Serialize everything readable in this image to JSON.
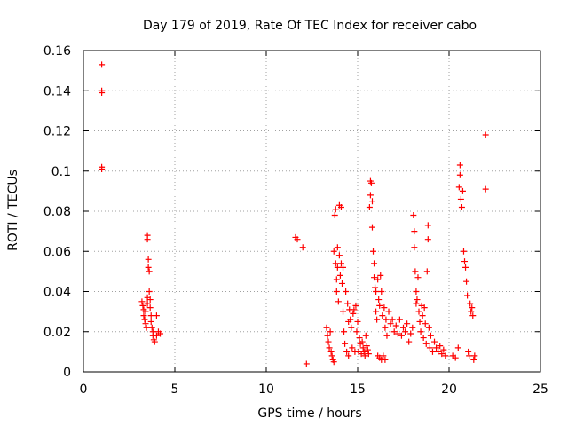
{
  "chart_data": {
    "type": "scatter",
    "title": "Day 179 of 2019, Rate Of TEC Index for receiver cabo",
    "xlabel": "GPS time / hours",
    "ylabel": "ROTI / TECUs",
    "xlim": [
      0,
      25
    ],
    "ylim": [
      0,
      0.16
    ],
    "xticks": [
      0,
      5,
      10,
      15,
      20,
      25
    ],
    "yticks": [
      0,
      0.02,
      0.04,
      0.06,
      0.08,
      0.1,
      0.12,
      0.14,
      0.16
    ],
    "xtick_labels": [
      "0",
      "5",
      "10",
      "15",
      "20",
      "25"
    ],
    "ytick_labels": [
      "0",
      "0.02",
      "0.04",
      "0.06",
      "0.08",
      "0.1",
      "0.12",
      "0.14",
      "0.16"
    ],
    "grid": true,
    "marker": "plus",
    "color": "#ff0000",
    "points": [
      [
        1.0,
        0.153
      ],
      [
        1.0,
        0.14
      ],
      [
        1.0,
        0.139
      ],
      [
        1.0,
        0.102
      ],
      [
        1.0,
        0.101
      ],
      [
        3.2,
        0.035
      ],
      [
        3.25,
        0.033
      ],
      [
        3.3,
        0.031
      ],
      [
        3.3,
        0.028
      ],
      [
        3.35,
        0.026
      ],
      [
        3.4,
        0.03
      ],
      [
        3.4,
        0.024
      ],
      [
        3.45,
        0.022
      ],
      [
        3.5,
        0.034
      ],
      [
        3.5,
        0.037
      ],
      [
        3.5,
        0.066
      ],
      [
        3.5,
        0.068
      ],
      [
        3.55,
        0.056
      ],
      [
        3.55,
        0.052
      ],
      [
        3.6,
        0.05
      ],
      [
        3.6,
        0.04
      ],
      [
        3.65,
        0.036
      ],
      [
        3.65,
        0.032
      ],
      [
        3.7,
        0.028
      ],
      [
        3.7,
        0.025
      ],
      [
        3.75,
        0.022
      ],
      [
        3.8,
        0.02
      ],
      [
        3.8,
        0.018
      ],
      [
        3.85,
        0.016
      ],
      [
        3.9,
        0.015
      ],
      [
        4.0,
        0.028
      ],
      [
        4.0,
        0.018
      ],
      [
        4.1,
        0.02
      ],
      [
        4.2,
        0.019
      ],
      [
        11.6,
        0.067
      ],
      [
        11.7,
        0.066
      ],
      [
        12.0,
        0.062
      ],
      [
        12.2,
        0.004
      ],
      [
        13.3,
        0.022
      ],
      [
        13.35,
        0.018
      ],
      [
        13.4,
        0.015
      ],
      [
        13.45,
        0.012
      ],
      [
        13.5,
        0.02
      ],
      [
        13.55,
        0.01
      ],
      [
        13.6,
        0.008
      ],
      [
        13.65,
        0.006
      ],
      [
        13.7,
        0.06
      ],
      [
        13.7,
        0.005
      ],
      [
        13.75,
        0.078
      ],
      [
        13.8,
        0.081
      ],
      [
        13.8,
        0.054
      ],
      [
        13.85,
        0.046
      ],
      [
        13.85,
        0.04
      ],
      [
        13.9,
        0.062
      ],
      [
        13.9,
        0.052
      ],
      [
        13.95,
        0.035
      ],
      [
        14.0,
        0.083
      ],
      [
        14.0,
        0.058
      ],
      [
        14.05,
        0.048
      ],
      [
        14.1,
        0.082
      ],
      [
        14.1,
        0.054
      ],
      [
        14.15,
        0.044
      ],
      [
        14.2,
        0.052
      ],
      [
        14.2,
        0.03
      ],
      [
        14.25,
        0.02
      ],
      [
        14.3,
        0.014
      ],
      [
        14.35,
        0.04
      ],
      [
        14.4,
        0.01
      ],
      [
        14.45,
        0.034
      ],
      [
        14.5,
        0.025
      ],
      [
        14.5,
        0.008
      ],
      [
        14.55,
        0.031
      ],
      [
        14.6,
        0.026
      ],
      [
        14.65,
        0.022
      ],
      [
        14.7,
        0.012
      ],
      [
        14.75,
        0.029
      ],
      [
        14.8,
        0.031
      ],
      [
        14.85,
        0.01
      ],
      [
        14.9,
        0.033
      ],
      [
        14.95,
        0.02
      ],
      [
        15.0,
        0.025
      ],
      [
        15.05,
        0.01
      ],
      [
        15.1,
        0.017
      ],
      [
        15.15,
        0.014
      ],
      [
        15.2,
        0.009
      ],
      [
        15.25,
        0.015
      ],
      [
        15.3,
        0.012
      ],
      [
        15.35,
        0.01
      ],
      [
        15.4,
        0.008
      ],
      [
        15.45,
        0.018
      ],
      [
        15.5,
        0.013
      ],
      [
        15.55,
        0.011
      ],
      [
        15.6,
        0.009
      ],
      [
        15.65,
        0.082
      ],
      [
        15.7,
        0.095
      ],
      [
        15.7,
        0.088
      ],
      [
        15.75,
        0.094
      ],
      [
        15.8,
        0.085
      ],
      [
        15.8,
        0.072
      ],
      [
        15.85,
        0.06
      ],
      [
        15.9,
        0.054
      ],
      [
        15.9,
        0.047
      ],
      [
        15.95,
        0.042
      ],
      [
        16.0,
        0.04
      ],
      [
        16.0,
        0.03
      ],
      [
        16.05,
        0.026
      ],
      [
        16.1,
        0.046
      ],
      [
        16.1,
        0.008
      ],
      [
        16.15,
        0.036
      ],
      [
        16.2,
        0.033
      ],
      [
        16.2,
        0.007
      ],
      [
        16.25,
        0.048
      ],
      [
        16.3,
        0.04
      ],
      [
        16.3,
        0.006
      ],
      [
        16.35,
        0.028
      ],
      [
        16.4,
        0.008
      ],
      [
        16.45,
        0.032
      ],
      [
        16.5,
        0.022
      ],
      [
        16.5,
        0.006
      ],
      [
        16.55,
        0.026
      ],
      [
        16.6,
        0.018
      ],
      [
        16.7,
        0.03
      ],
      [
        16.8,
        0.024
      ],
      [
        16.9,
        0.026
      ],
      [
        17.0,
        0.02
      ],
      [
        17.1,
        0.023
      ],
      [
        17.2,
        0.019
      ],
      [
        17.3,
        0.026
      ],
      [
        17.4,
        0.018
      ],
      [
        17.5,
        0.022
      ],
      [
        17.6,
        0.02
      ],
      [
        17.7,
        0.024
      ],
      [
        17.8,
        0.015
      ],
      [
        17.9,
        0.019
      ],
      [
        18.0,
        0.022
      ],
      [
        18.05,
        0.078
      ],
      [
        18.1,
        0.07
      ],
      [
        18.1,
        0.062
      ],
      [
        18.15,
        0.05
      ],
      [
        18.2,
        0.04
      ],
      [
        18.2,
        0.034
      ],
      [
        18.25,
        0.036
      ],
      [
        18.3,
        0.047
      ],
      [
        18.35,
        0.03
      ],
      [
        18.4,
        0.025
      ],
      [
        18.45,
        0.02
      ],
      [
        18.5,
        0.033
      ],
      [
        18.55,
        0.028
      ],
      [
        18.6,
        0.017
      ],
      [
        18.65,
        0.032
      ],
      [
        18.7,
        0.024
      ],
      [
        18.75,
        0.014
      ],
      [
        18.8,
        0.05
      ],
      [
        18.85,
        0.073
      ],
      [
        18.85,
        0.066
      ],
      [
        18.9,
        0.022
      ],
      [
        18.95,
        0.012
      ],
      [
        19.0,
        0.018
      ],
      [
        19.1,
        0.01
      ],
      [
        19.2,
        0.015
      ],
      [
        19.3,
        0.012
      ],
      [
        19.4,
        0.01
      ],
      [
        19.5,
        0.013
      ],
      [
        19.6,
        0.009
      ],
      [
        19.7,
        0.011
      ],
      [
        19.8,
        0.008
      ],
      [
        20.2,
        0.008
      ],
      [
        20.35,
        0.007
      ],
      [
        20.5,
        0.012
      ],
      [
        20.55,
        0.092
      ],
      [
        20.6,
        0.103
      ],
      [
        20.6,
        0.098
      ],
      [
        20.65,
        0.086
      ],
      [
        20.7,
        0.082
      ],
      [
        20.75,
        0.09
      ],
      [
        20.8,
        0.06
      ],
      [
        20.85,
        0.055
      ],
      [
        20.9,
        0.052
      ],
      [
        20.95,
        0.045
      ],
      [
        21.0,
        0.038
      ],
      [
        21.05,
        0.01
      ],
      [
        21.1,
        0.008
      ],
      [
        21.15,
        0.034
      ],
      [
        21.2,
        0.03
      ],
      [
        21.25,
        0.032
      ],
      [
        21.3,
        0.028
      ],
      [
        21.35,
        0.006
      ],
      [
        21.4,
        0.008
      ],
      [
        22.0,
        0.118
      ],
      [
        22.0,
        0.091
      ]
    ]
  }
}
